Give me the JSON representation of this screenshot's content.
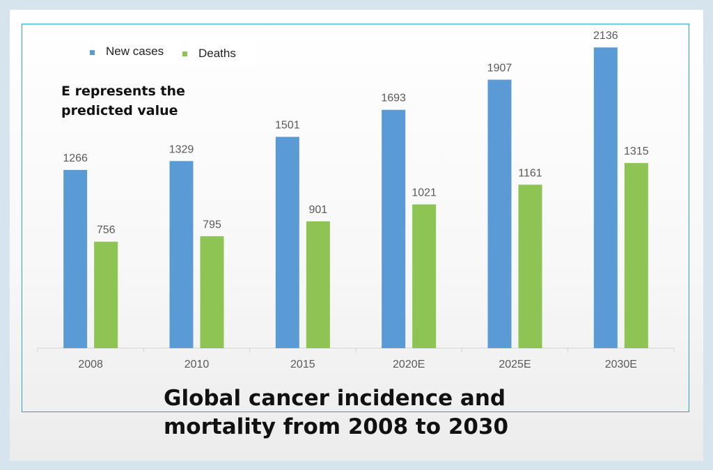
{
  "chart_data": {
    "type": "bar",
    "title": "Global cancer incidence and mortality from 2008 to 2030",
    "note": "E represents the predicted value",
    "categories": [
      "2008",
      "2010",
      "2015",
      "2020E",
      "2025E",
      "2030E"
    ],
    "series": [
      {
        "name": "New cases",
        "color": "#5b9bd5",
        "values": [
          1266,
          1329,
          1501,
          1693,
          1907,
          2136
        ]
      },
      {
        "name": "Deaths",
        "color": "#8dc453",
        "values": [
          756,
          795,
          901,
          1021,
          1161,
          1315
        ]
      }
    ],
    "ylim": [
      0,
      2300
    ],
    "grid": false,
    "legend_position": "top-left",
    "data_labels": true
  }
}
